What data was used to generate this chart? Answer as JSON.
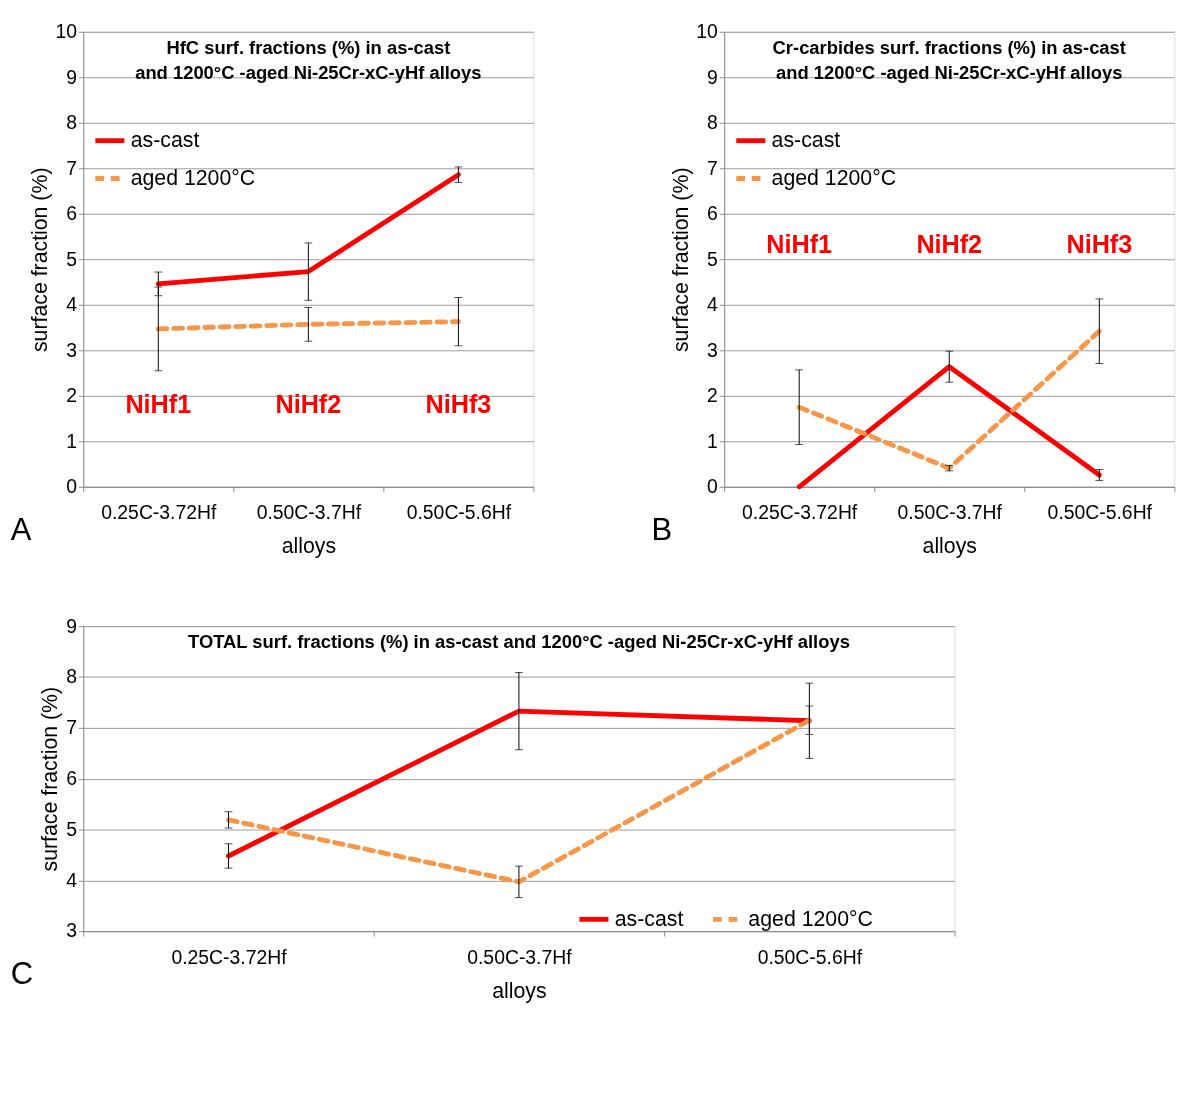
{
  "chart_data": [
    {
      "type": "line",
      "title": "HfC surf. fractions (%) in as-cast and 1200°C -aged Ni-25Cr-xC-yHf alloys",
      "xlabel": "alloys",
      "ylabel": "surface fraction (%)",
      "categories": [
        "0.25C-3.72Hf",
        "0.50C-3.7Hf",
        "0.50C-5.6Hf"
      ],
      "series": [
        {
          "name": "as-cast",
          "color": "#ff0000",
          "line_style": "solid",
          "values": [
            4.46,
            4.73,
            6.86
          ],
          "errors": [
            0.26,
            0.63,
            0.17
          ]
        },
        {
          "name": "aged 1200°C",
          "color": "#f79646",
          "line_style": "dashed",
          "values": [
            3.47,
            3.57,
            3.63
          ],
          "errors": [
            0.92,
            0.37,
            0.53
          ]
        }
      ],
      "ylim": [
        0,
        10
      ],
      "yticks": [
        0,
        1,
        2,
        3,
        4,
        5,
        6,
        7,
        8,
        9,
        10
      ],
      "grid": "y",
      "legend": "top left",
      "marker": "none",
      "annotations": [
        "NiHf1",
        "NiHf2",
        "NiHf3",
        "A"
      ]
    },
    {
      "type": "line",
      "title": "Cr-carbides surf. fractions (%) in as-cast and 1200°C -aged Ni-25Cr-xC-yHf alloys",
      "xlabel": "alloys",
      "ylabel": "surface fraction (%)",
      "categories": [
        "0.25C-3.72Hf",
        "0.50C-3.7Hf",
        "0.50C-5.6Hf"
      ],
      "series": [
        {
          "name": "as-cast",
          "color": "#ff0000",
          "line_style": "solid",
          "values": [
            0.0,
            2.64,
            0.26
          ],
          "errors": [
            null,
            0.34,
            0.12
          ]
        },
        {
          "name": "aged 1200°C",
          "color": "#f79646",
          "line_style": "dashed",
          "values": [
            1.75,
            0.41,
            3.42
          ],
          "errors": [
            0.82,
            0.06,
            0.71
          ]
        }
      ],
      "ylim": [
        0,
        10
      ],
      "yticks": [
        0,
        1,
        2,
        3,
        4,
        5,
        6,
        7,
        8,
        9,
        10
      ],
      "grid": "y",
      "legend": "top left",
      "marker": "none",
      "annotations": [
        "NiHf1",
        "NiHf2",
        "NiHf3",
        "B"
      ]
    },
    {
      "type": "line",
      "title": "TOTAL surf. fractions (%) in as-cast and 1200°C -aged Ni-25Cr-xC-yHf alloys",
      "xlabel": "alloys",
      "ylabel": "surface fraction (%)",
      "categories": [
        "0.25C-3.72Hf",
        "0.50C-3.7Hf",
        "0.50C-5.6Hf"
      ],
      "series": [
        {
          "name": "as-cast",
          "color": "#ff0000",
          "line_style": "solid",
          "values": [
            4.48,
            7.33,
            7.14
          ],
          "errors": [
            0.24,
            0.76,
            0.74
          ]
        },
        {
          "name": "aged 1200°C",
          "color": "#f79646",
          "line_style": "dashed",
          "values": [
            5.19,
            3.97,
            7.15
          ],
          "errors": [
            0.16,
            0.31,
            0.28
          ]
        }
      ],
      "ylim": [
        3,
        9
      ],
      "yticks": [
        3,
        4,
        5,
        6,
        7,
        8,
        9
      ],
      "grid": "y",
      "legend": "bottom right",
      "marker": "none",
      "annotations": [
        "C"
      ]
    }
  ]
}
